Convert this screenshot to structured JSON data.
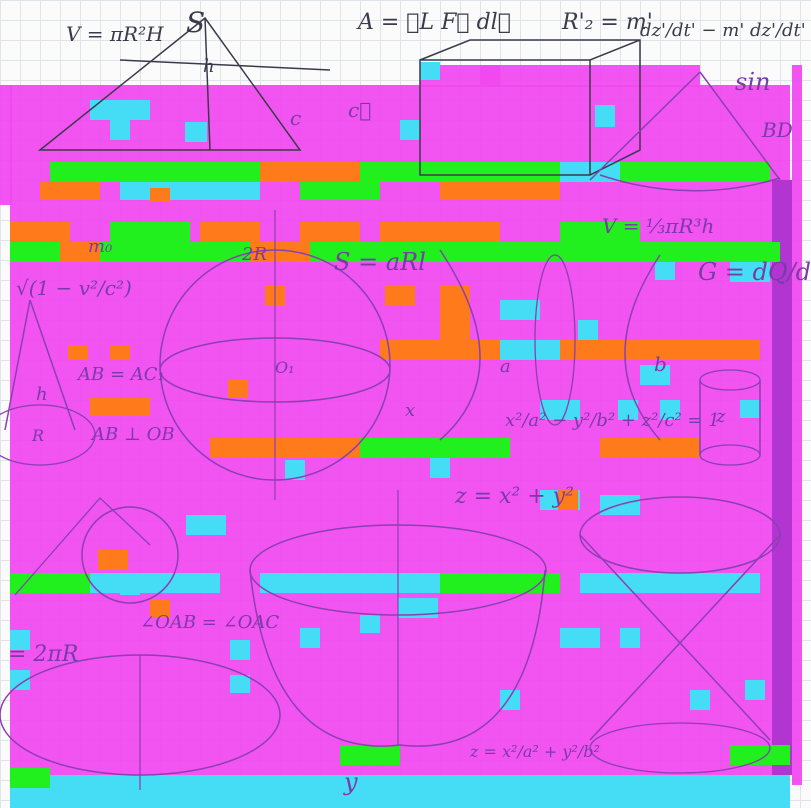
{
  "image": {
    "subject": "hand-drawn math formulas and geometric figures on grid paper, heavily corrupted by magenta, orange, green and cyan glitch blocks",
    "colors": {
      "paper": "#fbfbfb",
      "grid": "#dfe3ea",
      "ink": "#3a3a4a",
      "magenta": "#f147f0",
      "orange": "#ff7a1a",
      "green": "#22f01e",
      "cyan": "#45dcf5",
      "violet_ink": "#8a3fb2",
      "purple_strip": "#b335d1"
    }
  },
  "formulas": {
    "f1": "V = πR²H",
    "f2": "S",
    "f3": "h",
    "f4": "A = ∮L F⃗ dl⃗",
    "f5": "R'₂ = m'",
    "f6": "dz'/dt' − m' dz'/dt' ½ ЯC =",
    "f7": "sin",
    "f8": "BD",
    "f9": "c⃗",
    "f10": "c",
    "f11": "m₀",
    "f12": "2R",
    "f13": "S = aRl",
    "f14": "V = ⅓πR³h",
    "f15": "G = dQ/dT",
    "f16": "√(1 − v²/c²)",
    "f17": "O₁",
    "f18": "AB = AC₁",
    "f19": "h",
    "f20": "AB ⊥ OB",
    "f21": "x²/a² − y²/b² + z²/c² = 1",
    "f22": "z",
    "f23": "R",
    "f24": "z = x² + y²",
    "f25": "∠OAB = ∠OAC",
    "f26": "= 2πR",
    "f27": "z = x²/a² + y²/b²",
    "f28": "b",
    "f29": "a",
    "f30": "x",
    "f31": "y"
  }
}
